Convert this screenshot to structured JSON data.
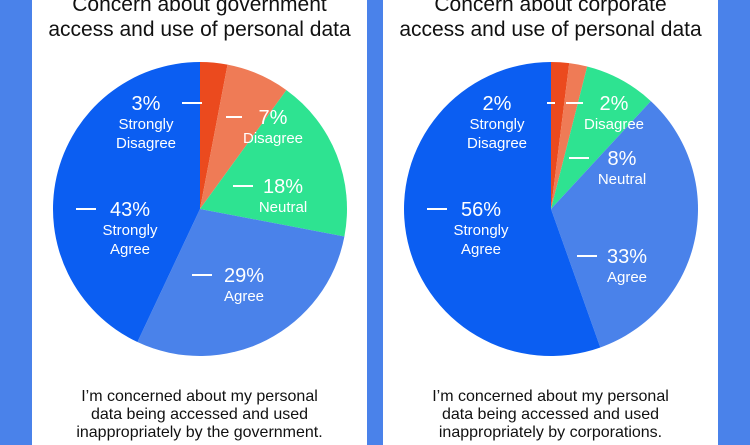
{
  "chart_data": [
    {
      "type": "pie",
      "title_lines": [
        "Concern about government",
        "access and use of personal data"
      ],
      "caption_lines": [
        "I’m concerned about my personal",
        "data being accessed and used",
        "inappropriately by the government."
      ],
      "slices": [
        {
          "label": "Strongly Disagree",
          "label_lines": [
            "Strongly",
            "Disagree"
          ],
          "value": 3,
          "value_text": "3%",
          "color": "#eb4a1e"
        },
        {
          "label": "Disagree",
          "label_lines": [
            "Disagree"
          ],
          "value": 7,
          "value_text": "7%",
          "color": "#ef7b56"
        },
        {
          "label": "Neutral",
          "label_lines": [
            "Neutral"
          ],
          "value": 18,
          "value_text": "18%",
          "color": "#2ee391"
        },
        {
          "label": "Agree",
          "label_lines": [
            "Agree"
          ],
          "value": 29,
          "value_text": "29%",
          "color": "#4a82ea"
        },
        {
          "label": "Strongly Agree",
          "label_lines": [
            "Strongly",
            "Agree"
          ],
          "value": 43,
          "value_text": "43%",
          "color": "#0b5ef2"
        }
      ]
    },
    {
      "type": "pie",
      "title_lines": [
        "Concern about corporate",
        "access and use of personal data"
      ],
      "caption_lines": [
        "I’m concerned about my personal",
        "data being accessed and used",
        "inappropriately by corporations."
      ],
      "slices": [
        {
          "label": "Strongly Disagree",
          "label_lines": [
            "Strongly",
            "Disagree"
          ],
          "value": 2,
          "value_text": "2%",
          "color": "#eb4a1e"
        },
        {
          "label": "Disagree",
          "label_lines": [
            "Disagree"
          ],
          "value": 2,
          "value_text": "2%",
          "color": "#ef7b56"
        },
        {
          "label": "Neutral",
          "label_lines": [
            "Neutral"
          ],
          "value": 8,
          "value_text": "8%",
          "color": "#2ee391"
        },
        {
          "label": "Agree",
          "label_lines": [
            "Agree"
          ],
          "value": 33,
          "value_text": "33%",
          "color": "#4a82ea"
        },
        {
          "label": "Strongly Agree",
          "label_lines": [
            "Strongly",
            "Agree"
          ],
          "value": 56,
          "value_text": "56%",
          "color": "#0b5ef2"
        }
      ]
    }
  ]
}
